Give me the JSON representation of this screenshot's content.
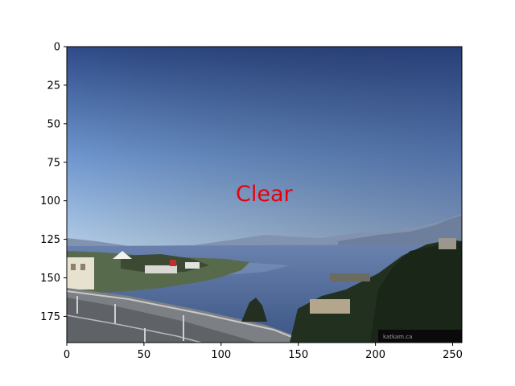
{
  "image": {
    "scene": "coastal webcam view",
    "overlay_label": "Clear",
    "overlay_color": "#e8000b",
    "watermark": "katkam.ca"
  },
  "axes": {
    "x_range": [
      0,
      256
    ],
    "y_range": [
      0,
      192
    ],
    "y_inverted": true,
    "x_ticks": [
      {
        "value": 0,
        "label": "0"
      },
      {
        "value": 50,
        "label": "50"
      },
      {
        "value": 100,
        "label": "100"
      },
      {
        "value": 150,
        "label": "150"
      },
      {
        "value": 200,
        "label": "200"
      },
      {
        "value": 250,
        "label": "250"
      }
    ],
    "y_ticks": [
      {
        "value": 0,
        "label": "0"
      },
      {
        "value": 25,
        "label": "25"
      },
      {
        "value": 50,
        "label": "50"
      },
      {
        "value": 75,
        "label": "75"
      },
      {
        "value": 100,
        "label": "100"
      },
      {
        "value": 125,
        "label": "125"
      },
      {
        "value": 150,
        "label": "150"
      },
      {
        "value": 175,
        "label": "175"
      }
    ]
  },
  "colors": {
    "sky_top": "#2e4a86",
    "sky_bottom": "#a9c6e4",
    "water": "#49628f",
    "mountain": "#7a8aa6",
    "trees": "#1f2a1e",
    "road": "#6b6f73"
  }
}
